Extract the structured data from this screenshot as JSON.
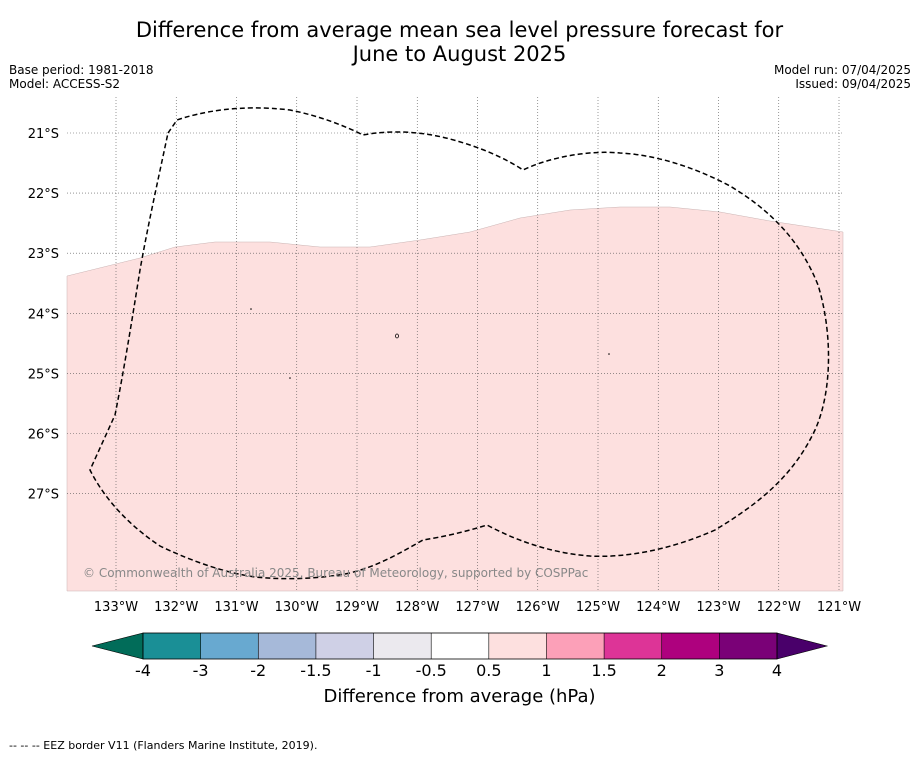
{
  "title": {
    "line1": "Difference from average mean sea level pressure forecast for",
    "line2": "June to August 2025"
  },
  "meta_left": {
    "base_period": "Base period: 1981-2018",
    "model": "Model: ACCESS-S2"
  },
  "meta_right": {
    "model_run": "Model run: 07/04/2025",
    "issued": "Issued: 09/04/2025"
  },
  "map": {
    "lon_labels": [
      "133°W",
      "132°W",
      "131°W",
      "130°W",
      "129°W",
      "128°W",
      "127°W",
      "126°W",
      "125°W",
      "124°W",
      "123°W",
      "122°W",
      "121°W"
    ],
    "lat_labels": [
      "21°S",
      "22°S",
      "23°S",
      "24°S",
      "25°S",
      "26°S",
      "27°S"
    ],
    "fill_color": "#fde0df",
    "copyright": "© Commonwealth of Australia 2025, Bureau of Meteorology, supported by COSPPac"
  },
  "colorbar": {
    "ticks": [
      "-4",
      "-3",
      "-2",
      "-1.5",
      "-1",
      "-0.5",
      "0.5",
      "1",
      "1.5",
      "2",
      "3",
      "4"
    ],
    "colors": [
      "#1a8f96",
      "#68a9d0",
      "#a6b9d9",
      "#cfd0e6",
      "#ebe9ee",
      "#ffffff",
      "#fde0df",
      "#fca0b8",
      "#dd3497",
      "#ae017e",
      "#7a0177"
    ],
    "under_color": "#016c59",
    "over_color": "#49006a",
    "label": "Difference from average (hPa)"
  },
  "footer": "--  --  -- EEZ border V11 (Flanders Marine Institute, 2019)."
}
